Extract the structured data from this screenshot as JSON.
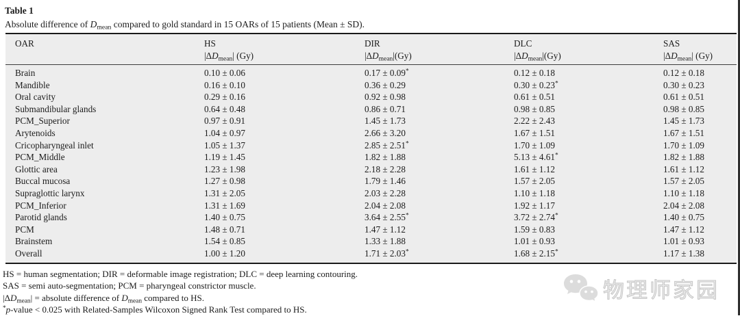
{
  "caption": {
    "label": "Table 1",
    "description_segments": [
      {
        "t": "t",
        "s": "Absolute difference of "
      },
      {
        "t": "i",
        "s": "D"
      },
      {
        "t": "sub",
        "s": "mean"
      },
      {
        "t": "t",
        "s": " compared to gold standard in 15 OARs of 15 patients (Mean ± SD)."
      }
    ]
  },
  "table": {
    "columns": [
      {
        "name": "OAR"
      },
      {
        "name": "HS",
        "unit_segments": [
          {
            "t": "t",
            "s": "|Δ"
          },
          {
            "t": "i",
            "s": "D"
          },
          {
            "t": "sub",
            "s": "mean"
          },
          {
            "t": "t",
            "s": "| (Gy)"
          }
        ]
      },
      {
        "name": "DIR",
        "unit_segments": [
          {
            "t": "t",
            "s": "|Δ"
          },
          {
            "t": "i",
            "s": "D"
          },
          {
            "t": "sub",
            "s": "mean"
          },
          {
            "t": "t",
            "s": "|(Gy)"
          }
        ]
      },
      {
        "name": "DLC",
        "unit_segments": [
          {
            "t": "t",
            "s": "|Δ"
          },
          {
            "t": "i",
            "s": "D"
          },
          {
            "t": "sub",
            "s": "mean"
          },
          {
            "t": "t",
            "s": "|(Gy)"
          }
        ]
      },
      {
        "name": "SAS",
        "unit_segments": [
          {
            "t": "t",
            "s": "|Δ"
          },
          {
            "t": "i",
            "s": "D"
          },
          {
            "t": "sub",
            "s": "mean"
          },
          {
            "t": "t",
            "s": "| (Gy)"
          }
        ]
      }
    ],
    "rows": [
      {
        "cells": [
          {
            "v": "Brain"
          },
          {
            "v": "0.10 ± 0.06"
          },
          {
            "v": "0.17 ± 0.09",
            "star": "*"
          },
          {
            "v": "0.12 ± 0.18"
          },
          {
            "v": "0.12 ± 0.18"
          }
        ]
      },
      {
        "cells": [
          {
            "v": "Mandible"
          },
          {
            "v": "0.16 ± 0.10"
          },
          {
            "v": "0.36 ± 0.29"
          },
          {
            "v": "0.30 ± 0.23",
            "star": "*"
          },
          {
            "v": "0.30 ± 0.23"
          }
        ]
      },
      {
        "cells": [
          {
            "v": "Oral cavity"
          },
          {
            "v": "0.29 ± 0.16"
          },
          {
            "v": "0.92 ± 0.98"
          },
          {
            "v": "0.61 ± 0.51"
          },
          {
            "v": "0.61 ± 0.51"
          }
        ]
      },
      {
        "cells": [
          {
            "v": "Submandibular glands"
          },
          {
            "v": "0.64 ± 0.48"
          },
          {
            "v": "0.86 ± 0.71"
          },
          {
            "v": "0.98 ± 0.85"
          },
          {
            "v": "0.98 ± 0.85"
          }
        ]
      },
      {
        "cells": [
          {
            "v": "PCM_Superior"
          },
          {
            "v": "0.97 ± 0.91"
          },
          {
            "v": "1.45 ± 1.73"
          },
          {
            "v": "2.22 ± 2.43"
          },
          {
            "v": "1.45 ± 1.73"
          }
        ]
      },
      {
        "cells": [
          {
            "v": "Arytenoids"
          },
          {
            "v": "1.04 ± 0.97"
          },
          {
            "v": "2.66 ± 3.20"
          },
          {
            "v": "1.67 ± 1.51"
          },
          {
            "v": "1.67 ± 1.51"
          }
        ]
      },
      {
        "cells": [
          {
            "v": "Cricopharyngeal inlet"
          },
          {
            "v": "1.05 ± 1.37"
          },
          {
            "v": "2.85 ± 2.51",
            "star": "*"
          },
          {
            "v": "1.70 ± 1.09"
          },
          {
            "v": "1.70 ± 1.09"
          }
        ]
      },
      {
        "cells": [
          {
            "v": "PCM_Middle"
          },
          {
            "v": "1.19 ± 1.45"
          },
          {
            "v": "1.82 ± 1.88"
          },
          {
            "v": "5.13 ± 4.61",
            "star": "*"
          },
          {
            "v": "1.82 ± 1.88"
          }
        ]
      },
      {
        "cells": [
          {
            "v": "Glottic area"
          },
          {
            "v": "1.23 ± 1.98"
          },
          {
            "v": "2.18 ± 2.28"
          },
          {
            "v": "1.61 ± 1.12"
          },
          {
            "v": "1.61 ± 1.12"
          }
        ]
      },
      {
        "cells": [
          {
            "v": "Buccal mucosa"
          },
          {
            "v": "1.27 ± 0.98"
          },
          {
            "v": "1.79 ± 1.46"
          },
          {
            "v": "1.57 ± 2.05"
          },
          {
            "v": "1.57 ± 2.05"
          }
        ]
      },
      {
        "cells": [
          {
            "v": "Supraglottic larynx"
          },
          {
            "v": "1.31 ± 2.05"
          },
          {
            "v": "2.03 ± 2.28"
          },
          {
            "v": "1.10 ± 1.18"
          },
          {
            "v": "1.10 ± 1.18"
          }
        ]
      },
      {
        "cells": [
          {
            "v": "PCM_Inferior"
          },
          {
            "v": "1.31 ± 1.69"
          },
          {
            "v": "2.04 ± 2.08"
          },
          {
            "v": "1.92 ± 1.17"
          },
          {
            "v": "2.04 ± 2.08"
          }
        ]
      },
      {
        "cells": [
          {
            "v": "Parotid glands"
          },
          {
            "v": "1.40 ± 0.75"
          },
          {
            "v": "3.64 ± 2.55",
            "star": "*"
          },
          {
            "v": "3.72 ± 2.74",
            "star": "*"
          },
          {
            "v": "1.40 ± 0.75"
          }
        ]
      },
      {
        "cells": [
          {
            "v": "PCM"
          },
          {
            "v": "1.48 ± 0.71"
          },
          {
            "v": "1.47 ± 1.12"
          },
          {
            "v": "1.59 ± 0.83"
          },
          {
            "v": "1.47 ± 1.12"
          }
        ]
      },
      {
        "cells": [
          {
            "v": "Brainstem"
          },
          {
            "v": "1.54 ± 0.85"
          },
          {
            "v": "1.33 ± 1.88"
          },
          {
            "v": "1.01 ± 0.93"
          },
          {
            "v": "1.01 ± 0.93"
          }
        ]
      },
      {
        "cells": [
          {
            "v": "Overall"
          },
          {
            "v": "1.00 ± 1.20"
          },
          {
            "v": "1.71 ± 2.03",
            "star": "*"
          },
          {
            "v": "1.68 ± 2.15",
            "star": "*"
          },
          {
            "v": "1.17 ± 1.38"
          }
        ]
      }
    ]
  },
  "footnotes": [
    {
      "segments": [
        {
          "t": "t",
          "s": "HS = human segmentation; DIR = deformable image registration; DLC = deep learning contouring."
        }
      ]
    },
    {
      "segments": [
        {
          "t": "t",
          "s": "SAS = semi auto-segmentation; PCM = pharyngeal constrictor muscle."
        }
      ]
    },
    {
      "segments": [
        {
          "t": "t",
          "s": "|Δ"
        },
        {
          "t": "i",
          "s": "D"
        },
        {
          "t": "sub",
          "s": "mean"
        },
        {
          "t": "t",
          "s": "| = absolute difference of "
        },
        {
          "t": "i",
          "s": "D"
        },
        {
          "t": "sub",
          "s": "mean"
        },
        {
          "t": "t",
          "s": " compared to HS."
        }
      ]
    },
    {
      "segments": [
        {
          "t": "sup",
          "s": "*"
        },
        {
          "t": "i",
          "s": "p"
        },
        {
          "t": "t",
          "s": "-value < 0.025 with Related-Samples Wilcoxon Signed Rank Test compared to HS."
        }
      ]
    }
  ],
  "watermark": {
    "text": "物理师家园",
    "icon": "wechat-icon"
  },
  "colors": {
    "table_background": "#ededed",
    "rule": "#1a1a1a",
    "text": "#1b1b1b",
    "watermark": "#c6c6c6"
  }
}
